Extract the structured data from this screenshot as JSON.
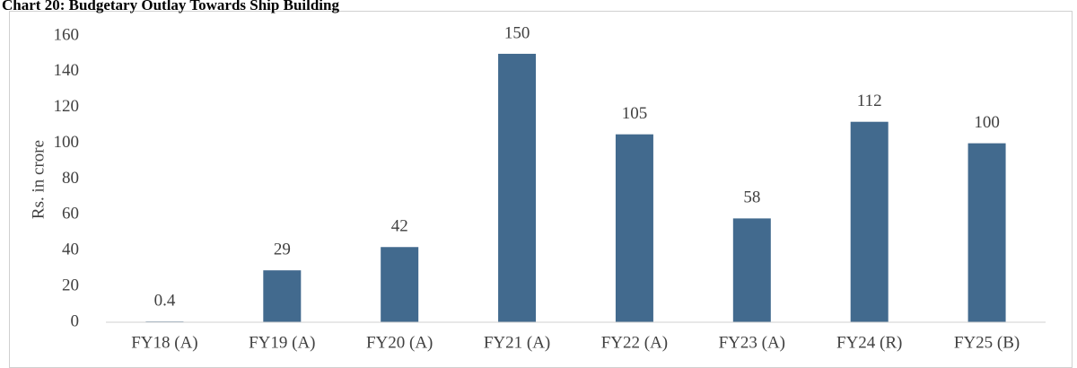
{
  "chart_data": {
    "type": "bar",
    "title": "Chart 20: Budgetary Outlay Towards Ship Building",
    "ylabel": "Rs. in crore",
    "categories": [
      "FY18 (A)",
      "FY19 (A)",
      "FY20 (A)",
      "FY21 (A)",
      "FY22 (A)",
      "FY23 (A)",
      "FY24 (R)",
      "FY25 (B)"
    ],
    "values": [
      0.4,
      29,
      42,
      150,
      105,
      58,
      112,
      100
    ],
    "color": "#426a8e",
    "ylim": [
      0,
      160
    ],
    "yticks": [
      0,
      20,
      40,
      60,
      80,
      100,
      120,
      140,
      160
    ],
    "grid": false
  }
}
